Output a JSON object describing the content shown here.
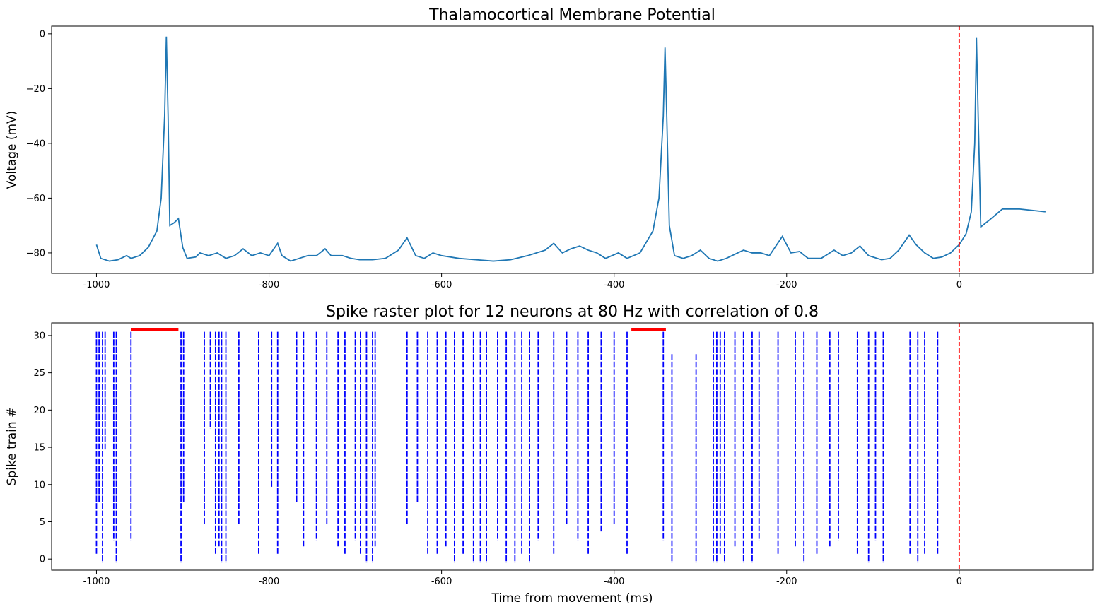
{
  "chart_data": [
    {
      "type": "line",
      "title": "Thalamocortical Membrane Potential",
      "ylabel": "Voltage (mV)",
      "xlim": [
        -1052,
        155
      ],
      "ylim": [
        -87.5,
        2.8
      ],
      "xticks": [
        -1000,
        -800,
        -600,
        -400,
        -200,
        0
      ],
      "yticks": [
        {
          "value": -80,
          "label": "−80"
        },
        {
          "value": -60,
          "label": "−60"
        },
        {
          "value": -40,
          "label": "−40"
        },
        {
          "value": -20,
          "label": "−20"
        },
        0
      ],
      "series": [
        {
          "color": "#1f77b4",
          "x": [
            -1000,
            -995,
            -985,
            -975,
            -965,
            -960,
            -950,
            -940,
            -930,
            -925,
            -921,
            -919,
            -917,
            -915,
            -910,
            -905,
            -900,
            -895,
            -885,
            -880,
            -870,
            -860,
            -850,
            -840,
            -830,
            -820,
            -810,
            -800,
            -790,
            -785,
            -775,
            -765,
            -755,
            -745,
            -735,
            -728,
            -715,
            -705,
            -695,
            -680,
            -665,
            -650,
            -640,
            -630,
            -620,
            -610,
            -600,
            -580,
            -560,
            -540,
            -520,
            -500,
            -480,
            -470,
            -460,
            -450,
            -440,
            -430,
            -420,
            -410,
            -395,
            -385,
            -370,
            -355,
            -348,
            -343,
            -341,
            -339,
            -336,
            -330,
            -320,
            -310,
            -300,
            -290,
            -280,
            -270,
            -260,
            -250,
            -240,
            -230,
            -220,
            -205,
            -195,
            -185,
            -175,
            -160,
            -145,
            -135,
            -125,
            -115,
            -105,
            -90,
            -80,
            -70,
            -58,
            -50,
            -40,
            -30,
            -20,
            -10,
            0,
            8,
            14,
            18,
            20,
            22,
            25,
            35,
            50,
            70,
            100
          ],
          "values": [
            -77,
            -82,
            -83,
            -82.5,
            -81,
            -82,
            -81,
            -78,
            -72,
            -60,
            -30,
            -1,
            -30,
            -70,
            -69,
            -67.5,
            -78,
            -82,
            -81.5,
            -80,
            -81,
            -80,
            -82,
            -81,
            -78.5,
            -81,
            -80,
            -81,
            -76.5,
            -81,
            -83,
            -82,
            -81,
            -81,
            -78.5,
            -81,
            -81,
            -82,
            -82.5,
            -82.5,
            -82,
            -79,
            -74.5,
            -81,
            -82,
            -80,
            -81,
            -82,
            -82.5,
            -83,
            -82.5,
            -81,
            -79,
            -76.5,
            -80,
            -78.5,
            -77.5,
            -79,
            -80,
            -82,
            -80,
            -82,
            -80,
            -72,
            -60,
            -30,
            -5,
            -30,
            -70,
            -81,
            -82,
            -81,
            -79,
            -82,
            -83,
            -82,
            -80.5,
            -79,
            -80,
            -80,
            -81,
            -74,
            -80,
            -79.5,
            -82,
            -82,
            -79,
            -81,
            -80,
            -77.5,
            -81,
            -82.5,
            -82,
            -79,
            -73.5,
            -77,
            -80,
            -82,
            -81.5,
            -80,
            -77,
            -73,
            -65,
            -40,
            -1.5,
            -30,
            -70.5,
            -68,
            -64,
            -64,
            -65
          ]
        }
      ],
      "vlines": [
        {
          "x": 0,
          "color": "red",
          "style": "dashed"
        }
      ]
    },
    {
      "type": "eventplot",
      "title": "Spike raster plot for 12 neurons at 80 Hz with correlation of 0.8",
      "ylabel": "Spike train #",
      "xlabel": "Time from movement (ms)",
      "xlim": [
        -1052,
        155
      ],
      "ylim": [
        -1.5,
        31.7
      ],
      "xticks": [
        -1000,
        -800,
        -600,
        -400,
        -200,
        0
      ],
      "yticks": [
        0,
        5,
        10,
        15,
        20,
        25,
        30
      ],
      "color": "blue",
      "events": {
        "x": [
          -1000,
          -997,
          -993,
          -990,
          -980,
          -977,
          -960,
          -902,
          -899,
          -875,
          -868,
          -862,
          -858,
          -855,
          -850,
          -835,
          -812,
          -797,
          -790,
          -768,
          -760,
          -745,
          -733,
          -720,
          -712,
          -700,
          -694,
          -687,
          -680,
          -677,
          -640,
          -628,
          -616,
          -605,
          -595,
          -585,
          -575,
          -563,
          -555,
          -548,
          -535,
          -525,
          -515,
          -507,
          -498,
          -488,
          -470,
          -455,
          -442,
          -430,
          -415,
          -400,
          -385,
          -343,
          -333,
          -305,
          -285,
          -281,
          -277,
          -272,
          -260,
          -250,
          -240,
          -232,
          -210,
          -190,
          -180,
          -165,
          -150,
          -140,
          -118,
          -105,
          -97,
          -88,
          -57,
          -48,
          -40,
          -25
        ],
        "y_start": [
          1,
          8,
          0,
          15,
          3,
          0,
          3,
          0,
          8,
          5,
          18,
          1,
          2,
          0,
          0,
          5,
          1,
          10,
          1,
          8,
          2,
          3,
          5,
          2,
          1,
          3,
          1,
          0,
          0,
          2,
          5,
          8,
          1,
          1,
          2,
          0,
          1,
          0,
          0,
          0,
          3,
          0,
          0,
          1,
          0,
          3,
          1,
          5,
          3,
          1,
          4,
          5,
          1,
          3,
          0,
          0,
          0,
          0,
          1,
          0,
          2,
          0,
          0,
          3,
          1,
          2,
          0,
          1,
          2,
          3,
          1,
          0,
          3,
          0,
          1,
          0,
          1,
          1
        ],
        "y_end": [
          30,
          30,
          30,
          30,
          30,
          30,
          30,
          30,
          30,
          30,
          30,
          30,
          30,
          30,
          30,
          30,
          30,
          30,
          30,
          30,
          30,
          30,
          30,
          30,
          30,
          30,
          30,
          30,
          30,
          30,
          30,
          30,
          30,
          30,
          30,
          30,
          30,
          30,
          30,
          30,
          30,
          30,
          30,
          30,
          30,
          30,
          30,
          30,
          30,
          30,
          30,
          30,
          30,
          30,
          27,
          27,
          30,
          30,
          30,
          30,
          30,
          30,
          30,
          30,
          30,
          30,
          30,
          30,
          30,
          30,
          30,
          30,
          30,
          30,
          30,
          30,
          30,
          30
        ]
      },
      "highlights": [
        {
          "x": [
            -960,
            -905
          ],
          "y": 30.8,
          "color": "red"
        },
        {
          "x": [
            -380,
            -340
          ],
          "y": 30.8,
          "color": "red"
        }
      ],
      "vlines": [
        {
          "x": 0,
          "color": "red",
          "style": "dashed"
        }
      ]
    }
  ]
}
